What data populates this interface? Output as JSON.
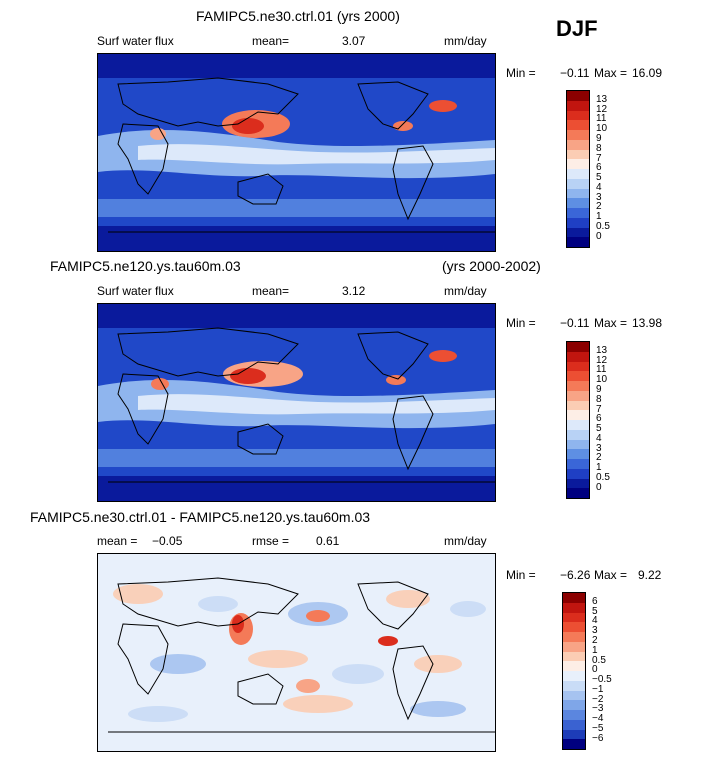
{
  "season": "DJF",
  "panels": [
    {
      "title": "FAMIPC5.ne30.ctrl.01 (yrs 2000)",
      "title_right": "",
      "left_label": "Surf water flux",
      "mean_label": "mean=",
      "mean_value": "3.07",
      "extra_label": "",
      "extra_value": "",
      "units": "mm/day",
      "min_label": "Min =",
      "min_value": "−0.11",
      "max_label": "Max =",
      "max_value": "16.09",
      "colorbar_ticks": [
        "13",
        "12",
        "11",
        "10",
        "9",
        "8",
        "7",
        "6",
        "5",
        "4",
        "3",
        "2",
        "1",
        "0.5",
        "0"
      ],
      "colorbar_colors": [
        "#8b0000",
        "#c1150f",
        "#db2d1d",
        "#ec4f33",
        "#f47a58",
        "#f8a486",
        "#fbcdb4",
        "#fdeee6",
        "#dde9fa",
        "#b8d2f5",
        "#8fb5ee",
        "#5e8fe3",
        "#3a66d8",
        "#1f3fc4",
        "#0a1a9c",
        "#000080"
      ]
    },
    {
      "title": "FAMIPC5.ne120.ys.tau60m.03",
      "title_right": "(yrs 2000-2002)",
      "left_label": "Surf water flux",
      "mean_label": "mean=",
      "mean_value": "3.12",
      "extra_label": "",
      "extra_value": "",
      "units": "mm/day",
      "min_label": "Min =",
      "min_value": "−0.11",
      "max_label": "Max =",
      "max_value": "13.98",
      "colorbar_ticks": [
        "13",
        "12",
        "11",
        "10",
        "9",
        "8",
        "7",
        "6",
        "5",
        "4",
        "3",
        "2",
        "1",
        "0.5",
        "0"
      ],
      "colorbar_colors": [
        "#8b0000",
        "#c1150f",
        "#db2d1d",
        "#ec4f33",
        "#f47a58",
        "#f8a486",
        "#fbcdb4",
        "#fdeee6",
        "#dde9fa",
        "#b8d2f5",
        "#8fb5ee",
        "#5e8fe3",
        "#3a66d8",
        "#1f3fc4",
        "#0a1a9c",
        "#000080"
      ]
    },
    {
      "title": "FAMIPC5.ne30.ctrl.01 - FAMIPC5.ne120.ys.tau60m.03",
      "title_right": "",
      "left_label": "",
      "mean_label": "mean =",
      "mean_value": "−0.05",
      "extra_label": "rmse =",
      "extra_value": "0.61",
      "units": "mm/day",
      "min_label": "Min =",
      "min_value": "−6.26",
      "max_label": "Max =",
      "max_value": "9.22",
      "colorbar_ticks": [
        "6",
        "5",
        "4",
        "3",
        "2",
        "1",
        "0.5",
        "0",
        "−0.5",
        "−1",
        "−2",
        "−3",
        "−4",
        "−5",
        "−6"
      ],
      "colorbar_colors": [
        "#8b0000",
        "#c1150f",
        "#db2d1d",
        "#ec4f33",
        "#f47a58",
        "#f8a486",
        "#fbcdb4",
        "#fdeee6",
        "#e8f0fb",
        "#c9dcf6",
        "#a6c3f0",
        "#7fa6e8",
        "#5b86df",
        "#3a62d1",
        "#1d3cb8",
        "#000080"
      ]
    }
  ]
}
